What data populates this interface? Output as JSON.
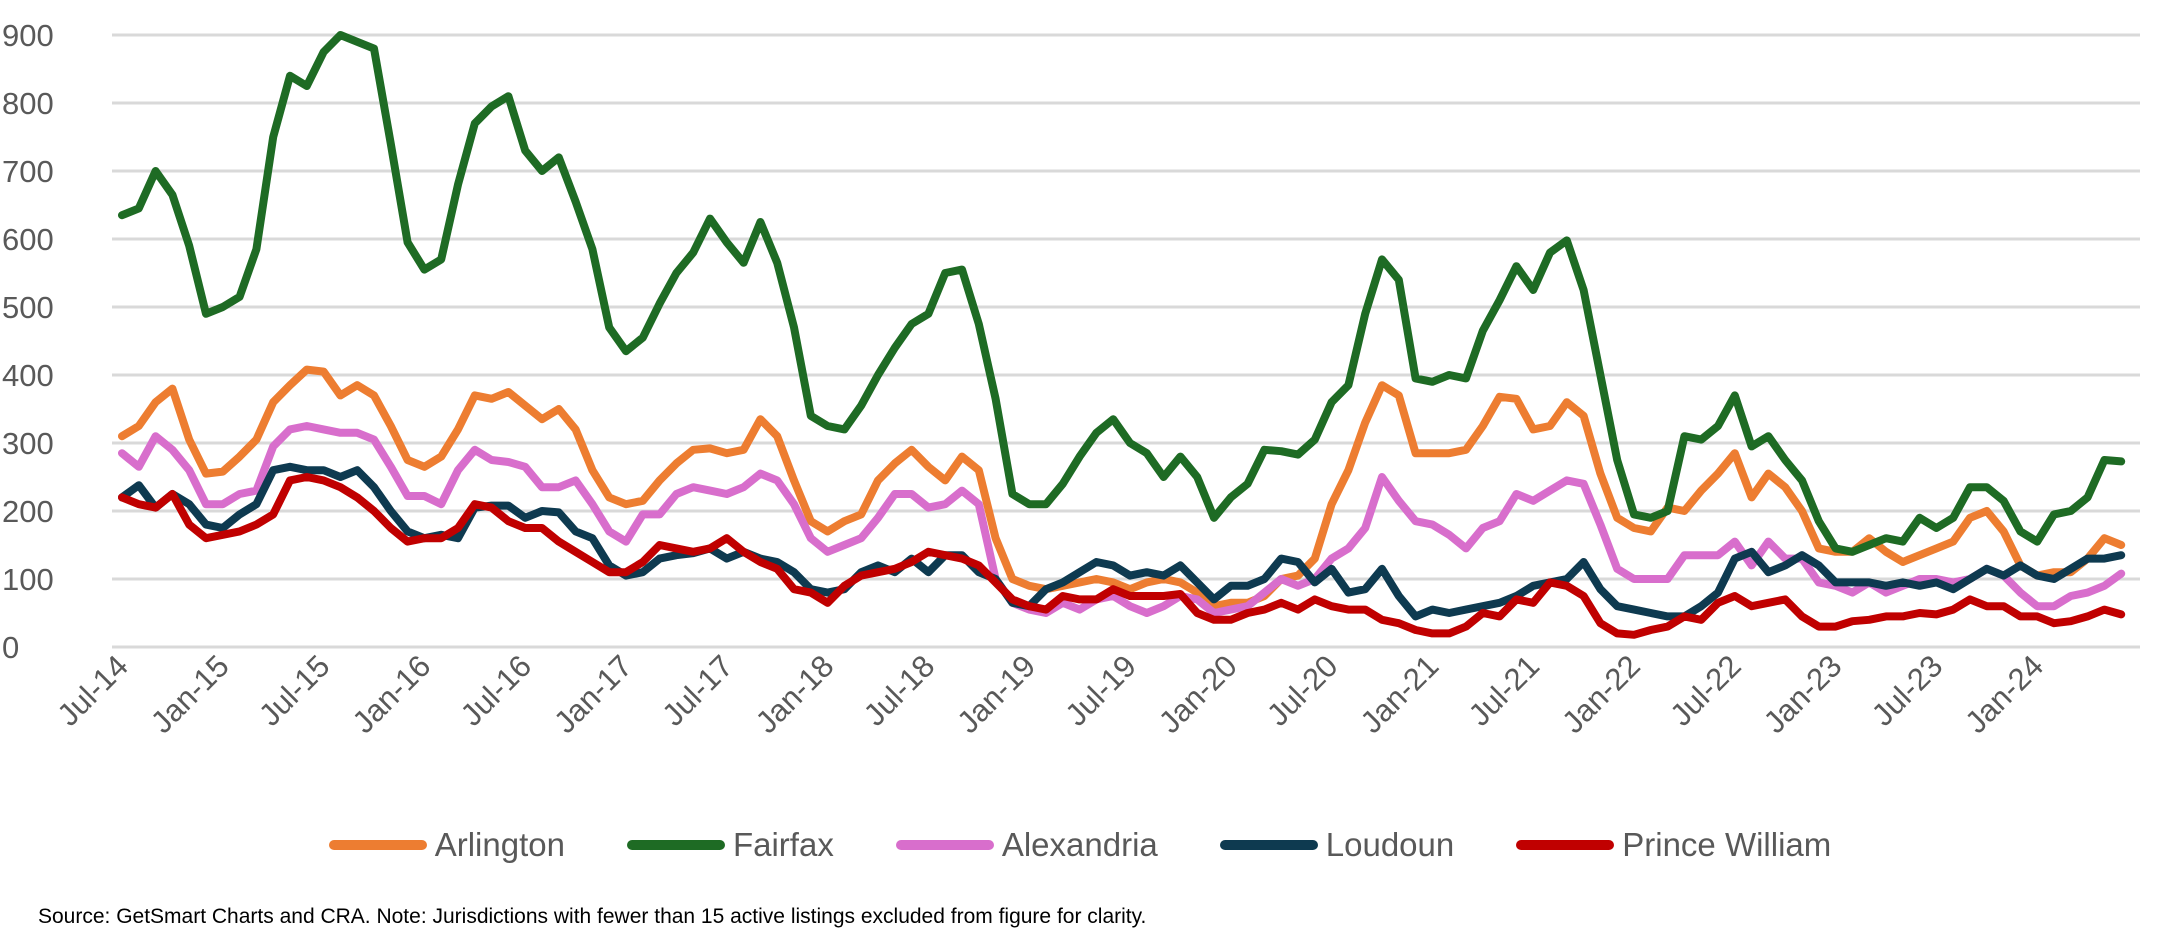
{
  "chart_data": {
    "type": "line",
    "title": "",
    "xlabel": "",
    "ylabel": "",
    "ylim": [
      0,
      900
    ],
    "yticks": [
      0,
      100,
      200,
      300,
      400,
      500,
      600,
      700,
      800,
      900
    ],
    "grid": true,
    "legend_position": "bottom",
    "x_start": "Jul-14",
    "x_tick_labels": [
      "Jul-14",
      "Jan-15",
      "Jul-15",
      "Jan-16",
      "Jul-16",
      "Jan-17",
      "Jul-17",
      "Jan-18",
      "Jul-18",
      "Jan-19",
      "Jul-19",
      "Jan-20",
      "Jul-20",
      "Jan-21",
      "Jul-21",
      "Jan-22",
      "Jul-22",
      "Jan-23",
      "Jul-23",
      "Jan-24"
    ],
    "series": [
      {
        "name": "Arlington",
        "color": "#ED7D31",
        "values": [
          310,
          325,
          360,
          380,
          305,
          255,
          258,
          280,
          305,
          360,
          385,
          408,
          405,
          370,
          385,
          370,
          325,
          275,
          265,
          280,
          320,
          370,
          365,
          375,
          355,
          335,
          350,
          320,
          260,
          220,
          210,
          215,
          245,
          270,
          290,
          292,
          285,
          290,
          335,
          310,
          245,
          185,
          170,
          185,
          195,
          245,
          270,
          290,
          265,
          245,
          280,
          260,
          160,
          100,
          90,
          85,
          90,
          95,
          100,
          95,
          85,
          95,
          100,
          95,
          80,
          60,
          65,
          65,
          75,
          100,
          105,
          130,
          210,
          260,
          330,
          385,
          370,
          285,
          285,
          285,
          290,
          325,
          368,
          365,
          320,
          325,
          360,
          340,
          255,
          190,
          175,
          170,
          205,
          200,
          230,
          255,
          285,
          220,
          255,
          235,
          200,
          145,
          140,
          140,
          160,
          140,
          125,
          135,
          145,
          155,
          190,
          200,
          170,
          120,
          105,
          110,
          110,
          130,
          160,
          150
        ]
      },
      {
        "name": "Fairfax",
        "color": "#1E6B24",
        "values": [
          635,
          645,
          700,
          665,
          590,
          490,
          500,
          515,
          585,
          750,
          840,
          825,
          875,
          900,
          890,
          880,
          740,
          595,
          555,
          570,
          680,
          770,
          795,
          810,
          730,
          700,
          720,
          655,
          585,
          470,
          435,
          455,
          505,
          550,
          580,
          630,
          595,
          565,
          625,
          565,
          470,
          340,
          325,
          320,
          355,
          400,
          440,
          475,
          490,
          550,
          555,
          475,
          365,
          225,
          210,
          210,
          240,
          280,
          315,
          335,
          300,
          285,
          250,
          280,
          250,
          190,
          220,
          240,
          290,
          288,
          283,
          305,
          360,
          385,
          490,
          570,
          540,
          395,
          390,
          400,
          395,
          465,
          510,
          560,
          525,
          580,
          598,
          525,
          400,
          275,
          195,
          190,
          200,
          310,
          305,
          325,
          370,
          295,
          310,
          275,
          245,
          185,
          145,
          140,
          150,
          160,
          155,
          190,
          175,
          190,
          235,
          235,
          215,
          170,
          155,
          195,
          200,
          220,
          275,
          273
        ]
      },
      {
        "name": "Alexandria",
        "color": "#D86ECC",
        "values": [
          285,
          265,
          310,
          290,
          260,
          210,
          210,
          225,
          230,
          295,
          320,
          325,
          320,
          315,
          315,
          305,
          265,
          222,
          222,
          210,
          260,
          290,
          275,
          272,
          265,
          235,
          235,
          245,
          210,
          170,
          155,
          195,
          195,
          225,
          235,
          230,
          225,
          235,
          255,
          245,
          210,
          160,
          140,
          150,
          160,
          190,
          225,
          225,
          205,
          210,
          230,
          210,
          100,
          65,
          55,
          50,
          65,
          55,
          70,
          75,
          60,
          50,
          60,
          75,
          70,
          50,
          55,
          60,
          80,
          100,
          90,
          100,
          130,
          145,
          175,
          250,
          215,
          185,
          180,
          165,
          145,
          175,
          185,
          225,
          215,
          230,
          245,
          240,
          180,
          115,
          100,
          100,
          100,
          135,
          135,
          135,
          155,
          120,
          155,
          130,
          130,
          95,
          90,
          80,
          95,
          80,
          90,
          100,
          100,
          95,
          100,
          115,
          105,
          80,
          60,
          60,
          75,
          80,
          90,
          108
        ]
      },
      {
        "name": "Loudoun",
        "color": "#0E3A50",
        "values": [
          220,
          238,
          205,
          225,
          210,
          180,
          175,
          195,
          210,
          260,
          265,
          260,
          260,
          250,
          260,
          235,
          200,
          170,
          160,
          165,
          160,
          205,
          208,
          208,
          190,
          200,
          198,
          170,
          160,
          120,
          105,
          110,
          130,
          135,
          138,
          145,
          130,
          140,
          130,
          125,
          110,
          85,
          80,
          85,
          110,
          120,
          110,
          130,
          110,
          135,
          135,
          110,
          100,
          65,
          60,
          85,
          95,
          110,
          125,
          120,
          105,
          110,
          105,
          120,
          95,
          70,
          90,
          90,
          100,
          130,
          125,
          95,
          115,
          80,
          85,
          115,
          75,
          45,
          55,
          50,
          55,
          60,
          65,
          75,
          90,
          95,
          100,
          125,
          85,
          60,
          55,
          50,
          45,
          45,
          60,
          80,
          130,
          140,
          110,
          120,
          135,
          120,
          95,
          95,
          95,
          90,
          95,
          90,
          95,
          85,
          100,
          115,
          105,
          120,
          105,
          100,
          115,
          130,
          130,
          135
        ]
      },
      {
        "name": "Prince William",
        "color": "#C00000",
        "values": [
          220,
          210,
          205,
          225,
          180,
          160,
          165,
          170,
          180,
          195,
          245,
          250,
          245,
          235,
          220,
          200,
          175,
          155,
          160,
          160,
          175,
          210,
          205,
          185,
          175,
          175,
          155,
          140,
          125,
          110,
          110,
          125,
          150,
          145,
          140,
          145,
          160,
          140,
          125,
          115,
          85,
          80,
          65,
          90,
          105,
          110,
          115,
          125,
          140,
          135,
          130,
          120,
          95,
          70,
          60,
          55,
          75,
          70,
          70,
          85,
          75,
          75,
          75,
          78,
          50,
          40,
          40,
          50,
          55,
          65,
          55,
          70,
          60,
          55,
          55,
          40,
          35,
          25,
          20,
          20,
          30,
          50,
          45,
          70,
          65,
          95,
          90,
          75,
          35,
          20,
          18,
          25,
          30,
          45,
          40,
          65,
          75,
          60,
          65,
          70,
          45,
          30,
          30,
          38,
          40,
          45,
          45,
          50,
          48,
          55,
          70,
          60,
          60,
          45,
          45,
          35,
          38,
          45,
          55,
          48
        ]
      }
    ]
  },
  "source_note": "Source: GetSmart Charts and CRA. Note: Jurisdictions with fewer than 15 active listings excluded from figure for clarity."
}
